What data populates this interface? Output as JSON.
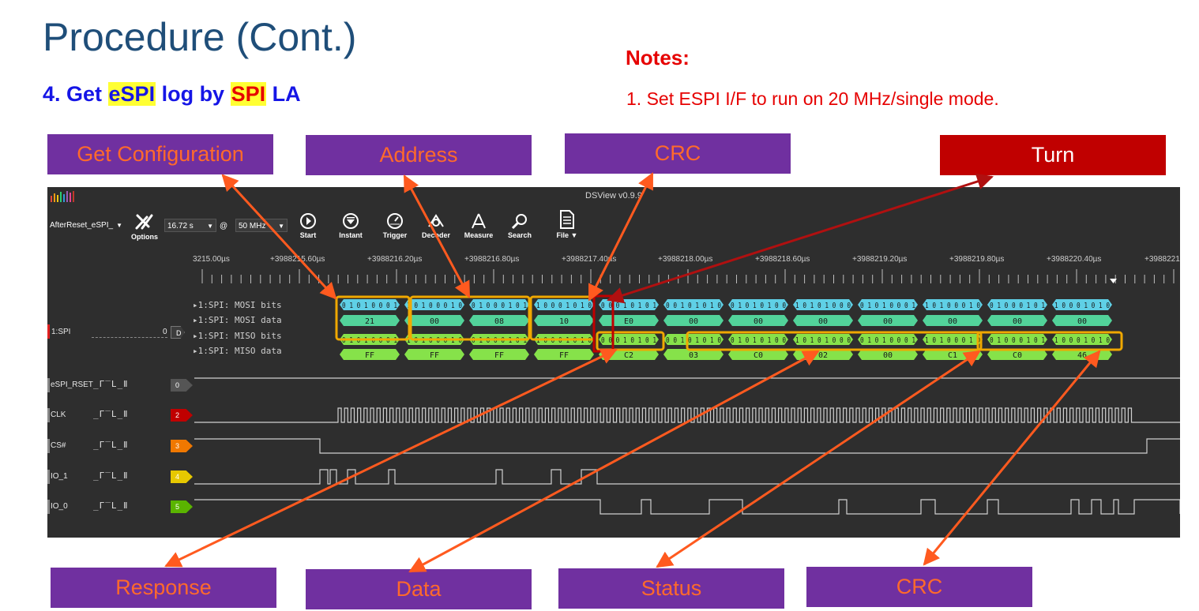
{
  "slide": {
    "title": "Procedure (Cont.)",
    "step_prefix": "4.  Get ",
    "step_espi": "eSPI",
    "step_mid": " log by ",
    "step_spi": "SPI",
    "step_suffix": " LA",
    "notes_heading": "Notes:",
    "note_1": "1. Set ESPI I/F to run on 20 MHz/single mode."
  },
  "callouts": {
    "get_configuration": "Get Configuration",
    "address": "Address",
    "crc_top": "CRC",
    "turn": "Turn",
    "response": "Response",
    "data": "Data",
    "status": "Status",
    "crc_bottom": "CRC"
  },
  "dsview": {
    "window_title": "DSView v0.9.9",
    "toolbar": {
      "session": "AfterReset_eSPI_",
      "options": "Options",
      "duration": "16.72 s",
      "at": "@",
      "rate": "50 MHz",
      "start": "Start",
      "instant": "Instant",
      "trigger": "Trigger",
      "decoder": "Decoder",
      "measure": "Measure",
      "search": "Search",
      "file": "File"
    },
    "time_ticks": [
      "3215.00µs",
      "+3988215.60µs",
      "+3988216.20µs",
      "+3988216.80µs",
      "+3988217.40µs",
      "+3988218.00µs",
      "+3988218.60µs",
      "+3988219.20µs",
      "+3988219.80µs",
      "+3988220.40µs",
      "+3988221"
    ],
    "decoder": {
      "channel": "1:SPI",
      "zero": "0",
      "badge": "D",
      "rows": [
        "1:SPI: MOSI bits",
        "1:SPI: MOSI data",
        "1:SPI: MISO bits",
        "1:SPI: MISO data"
      ]
    },
    "mosi_data": [
      "21",
      "00",
      "08",
      "10",
      "E0",
      "00",
      "00",
      "00",
      "00",
      "00",
      "00",
      "00"
    ],
    "miso_data": [
      "FF",
      "FF",
      "FF",
      "FF",
      "C2",
      "03",
      "C0",
      "02",
      "00",
      "C1",
      "C0",
      "46"
    ],
    "channels": [
      {
        "name": "eSPI_RSET",
        "index": "0",
        "color": "#555555"
      },
      {
        "name": "CLK",
        "index": "2",
        "color": "#c00000"
      },
      {
        "name": "CS#",
        "index": "3",
        "color": "#f07800"
      },
      {
        "name": "IO_1",
        "index": "4",
        "color": "#e6c800"
      },
      {
        "name": "IO_0",
        "index": "5",
        "color": "#5ab400"
      }
    ],
    "trigger_glyphs": "_Г‾L_Ⅱ",
    "colors": {
      "mosi_bits": "#5fd0e6",
      "mosi_data": "#52d39a",
      "miso": "#86e24a",
      "highlight_box": "#f0a800",
      "arrow": "#ff5a1f",
      "turn_arrow": "#b01010"
    }
  }
}
